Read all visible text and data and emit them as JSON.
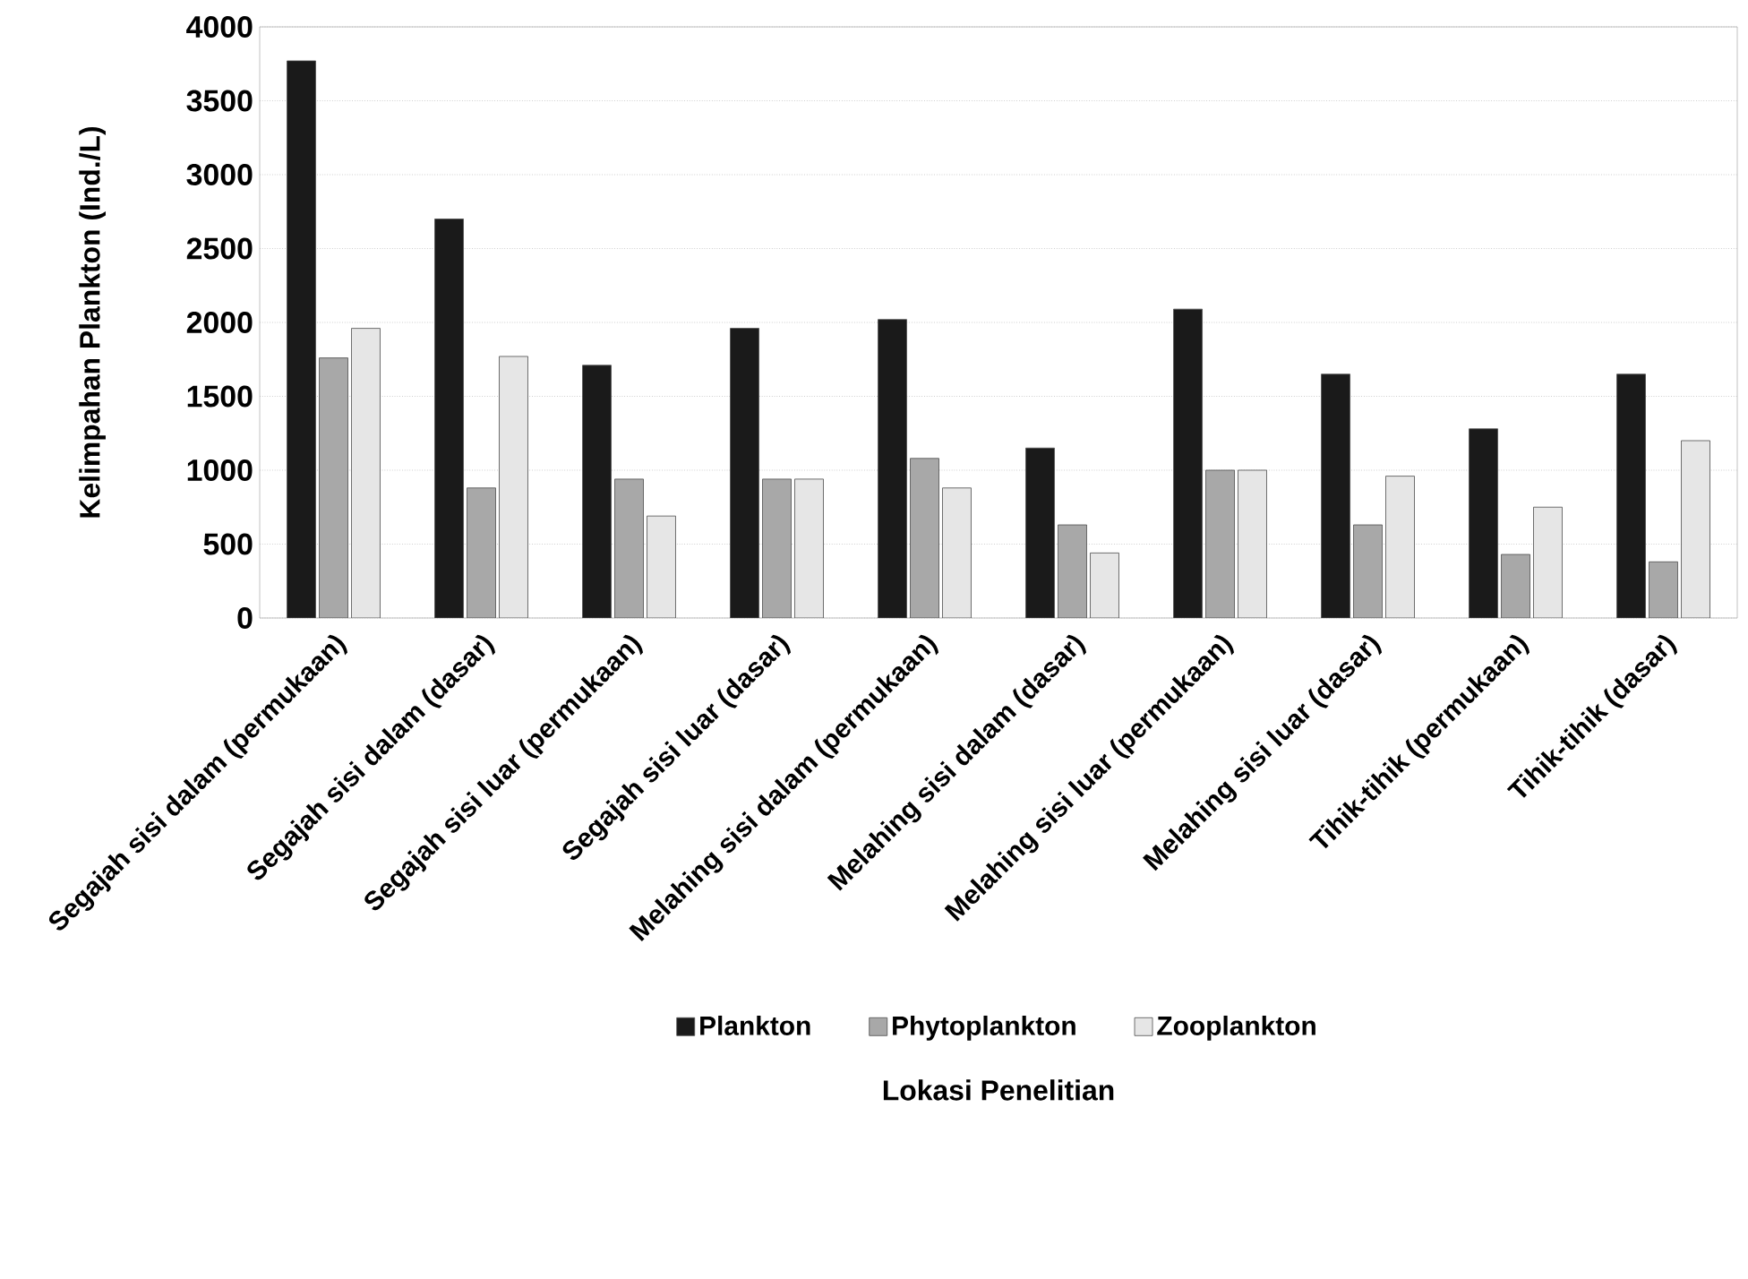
{
  "chart_data": {
    "type": "bar",
    "xlabel": "Lokasi Penelitian",
    "ylabel": "Kelimpahan Plankton (Ind./L)",
    "categories": [
      "Segajah sisi dalam (permukaan)",
      "Segajah sisi dalam (dasar)",
      "Segajah sisi luar (permukaan)",
      "Segajah sisi luar (dasar)",
      "Melahing sisi dalam (permukaan)",
      "Melahing sisi dalam (dasar)",
      "Melahing sisi luar (permukaan)",
      "Melahing sisi luar (dasar)",
      "Tihik-tihik (permukaan)",
      "Tihik-tihik (dasar)"
    ],
    "series": [
      {
        "name": "Plankton",
        "color": "#1a1a1a",
        "values": [
          3770,
          2700,
          1710,
          1960,
          2020,
          1150,
          2090,
          1650,
          1280,
          1650
        ]
      },
      {
        "name": "Phytoplankton",
        "color": "#a8a8a8",
        "values": [
          1760,
          880,
          940,
          940,
          1080,
          630,
          1000,
          630,
          430,
          380
        ]
      },
      {
        "name": "Zooplankton",
        "color": "#e6e6e6",
        "values": [
          1960,
          1770,
          690,
          940,
          880,
          440,
          1000,
          960,
          750,
          1200
        ]
      }
    ],
    "ylim": [
      0,
      4000
    ],
    "yticks": [
      0,
      500,
      1000,
      1500,
      2000,
      2500,
      3000,
      3500,
      4000
    ],
    "grid": "y",
    "legend": "bottom"
  }
}
